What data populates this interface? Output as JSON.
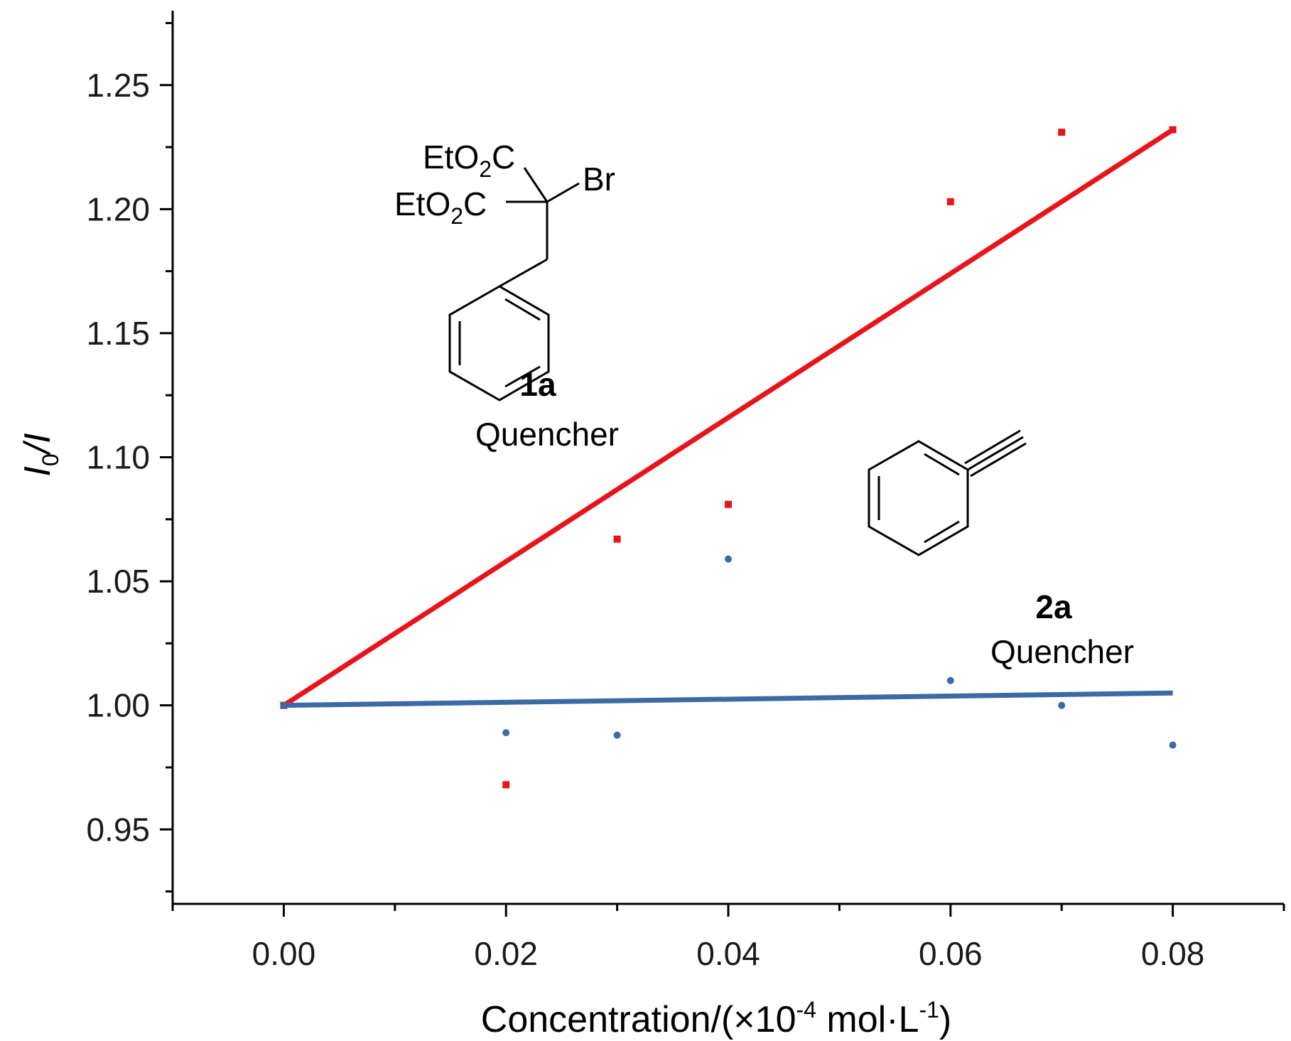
{
  "chart_data": {
    "type": "scatter",
    "xlabel_main": "Concentration/(×10",
    "xlabel_exp1": "-4",
    "xlabel_mid": " mol·L",
    "xlabel_exp2": "-1",
    "xlabel_end": ")",
    "ylabel_main": "I",
    "ylabel_sub": "0",
    "ylabel_rest": "/I",
    "xlim": [
      -0.01,
      0.09
    ],
    "ylim": [
      0.92,
      1.28
    ],
    "x_ticks": [
      0.0,
      0.02,
      0.04,
      0.06,
      0.08
    ],
    "x_tick_labels": [
      "0.00",
      "0.02",
      "0.04",
      "0.06",
      "0.08"
    ],
    "y_ticks": [
      0.95,
      1.0,
      1.05,
      1.1,
      1.15,
      1.2,
      1.25
    ],
    "y_tick_labels": [
      "0.95",
      "1.00",
      "1.05",
      "1.10",
      "1.15",
      "1.20",
      "1.25"
    ],
    "grid": false,
    "series": [
      {
        "color": "#e8141b",
        "marker": "square",
        "x": [
          0.0,
          0.02,
          0.03,
          0.04,
          0.06,
          0.07,
          0.08
        ],
        "y": [
          1.0,
          0.968,
          1.067,
          1.081,
          1.203,
          1.231,
          1.232
        ],
        "fit": {
          "x": [
            0.0,
            0.08
          ],
          "y": [
            1.0,
            1.232
          ]
        }
      },
      {
        "color": "#3c6aa5",
        "marker": "circle",
        "x": [
          0.0,
          0.02,
          0.03,
          0.04,
          0.06,
          0.07,
          0.08
        ],
        "y": [
          1.0,
          0.989,
          0.988,
          1.059,
          1.01,
          1.0,
          0.984
        ],
        "fit": {
          "x": [
            0.0,
            0.08
          ],
          "y": [
            1.0,
            1.005
          ]
        }
      }
    ]
  },
  "structure_1a": {
    "group1": "EtO",
    "sub1": "2",
    "end1": "C",
    "group2": "EtO",
    "sub2": "2",
    "end2": "C",
    "br": "Br",
    "id": "1a",
    "label": "Quencher"
  },
  "structure_2a": {
    "id": "2a",
    "label": "Quencher"
  }
}
